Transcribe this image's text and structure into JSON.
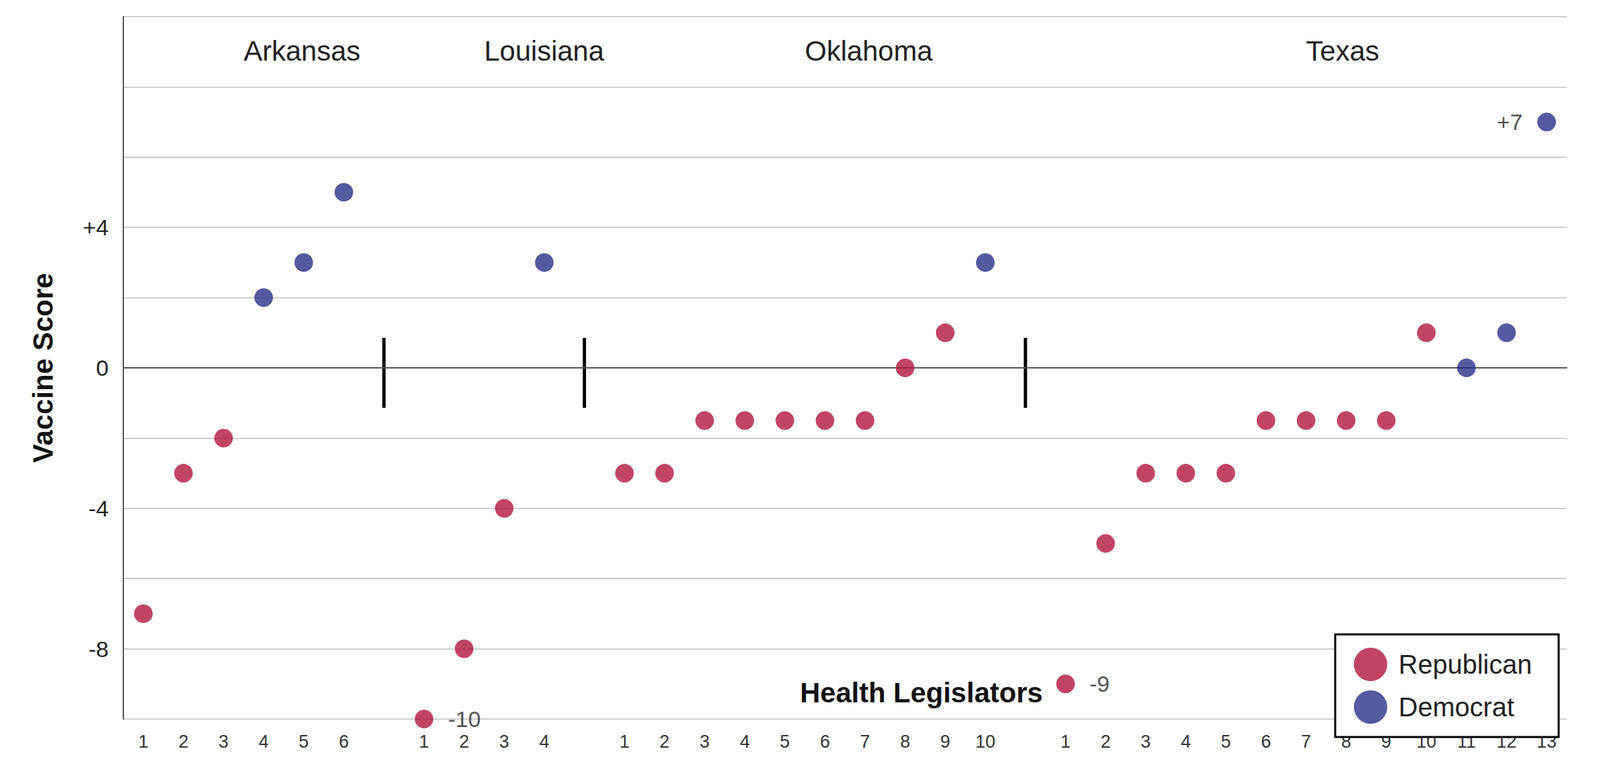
{
  "chart_data": {
    "type": "scatter",
    "x_label": "Health Legislators",
    "y_label": "Vaccine Score",
    "groups": [
      "Arkansas",
      "Louisiana",
      "Oklahoma",
      "Texas"
    ],
    "categories": [
      "1",
      "2",
      "3",
      "4",
      "5",
      "6",
      null,
      "1",
      "2",
      "3",
      "4",
      null,
      "1",
      "2",
      "3",
      "4",
      "5",
      "6",
      "7",
      "8",
      "9",
      "10",
      null,
      "1",
      "2",
      "3",
      "4",
      "5",
      "6",
      "7",
      "8",
      "9",
      "10",
      "11",
      "12",
      "13"
    ],
    "series": [
      {
        "name": "Republican",
        "color": "#b0163f",
        "values": [
          -7,
          -3,
          -2,
          null,
          null,
          null,
          null,
          -10,
          -8,
          -4,
          null,
          null,
          -3,
          -3,
          -1.5,
          -1.5,
          -1.5,
          -1.5,
          -1.5,
          0,
          1,
          null,
          null,
          -9,
          -5,
          -3,
          -3,
          -3,
          -1.5,
          -1.5,
          -1.5,
          -1.5,
          1,
          null,
          null,
          null
        ],
        "value_labels": [
          null,
          null,
          null,
          null,
          null,
          null,
          null,
          "-10",
          null,
          null,
          null,
          null,
          null,
          null,
          null,
          null,
          null,
          null,
          null,
          null,
          null,
          null,
          null,
          "-9",
          null,
          null,
          null,
          null,
          null,
          null,
          null,
          null,
          null,
          null,
          null,
          null
        ]
      },
      {
        "name": "Democrat",
        "color": "#2b3088",
        "values": [
          null,
          null,
          null,
          2,
          3,
          5,
          null,
          null,
          null,
          null,
          3,
          null,
          null,
          null,
          null,
          null,
          null,
          null,
          null,
          null,
          null,
          3,
          null,
          null,
          null,
          null,
          null,
          null,
          null,
          null,
          null,
          null,
          null,
          0,
          1,
          7
        ],
        "value_labels": [
          null,
          null,
          null,
          null,
          null,
          null,
          null,
          null,
          null,
          null,
          null,
          null,
          null,
          null,
          null,
          null,
          null,
          null,
          null,
          null,
          null,
          null,
          null,
          null,
          null,
          null,
          null,
          null,
          null,
          null,
          null,
          null,
          null,
          null,
          null,
          "+7"
        ]
      }
    ],
    "ylim": [
      -10,
      10
    ],
    "yticks": [
      {
        "value": 4,
        "label": "+4"
      },
      0,
      -4,
      -8
    ],
    "grid": true,
    "legend": "lower right"
  }
}
